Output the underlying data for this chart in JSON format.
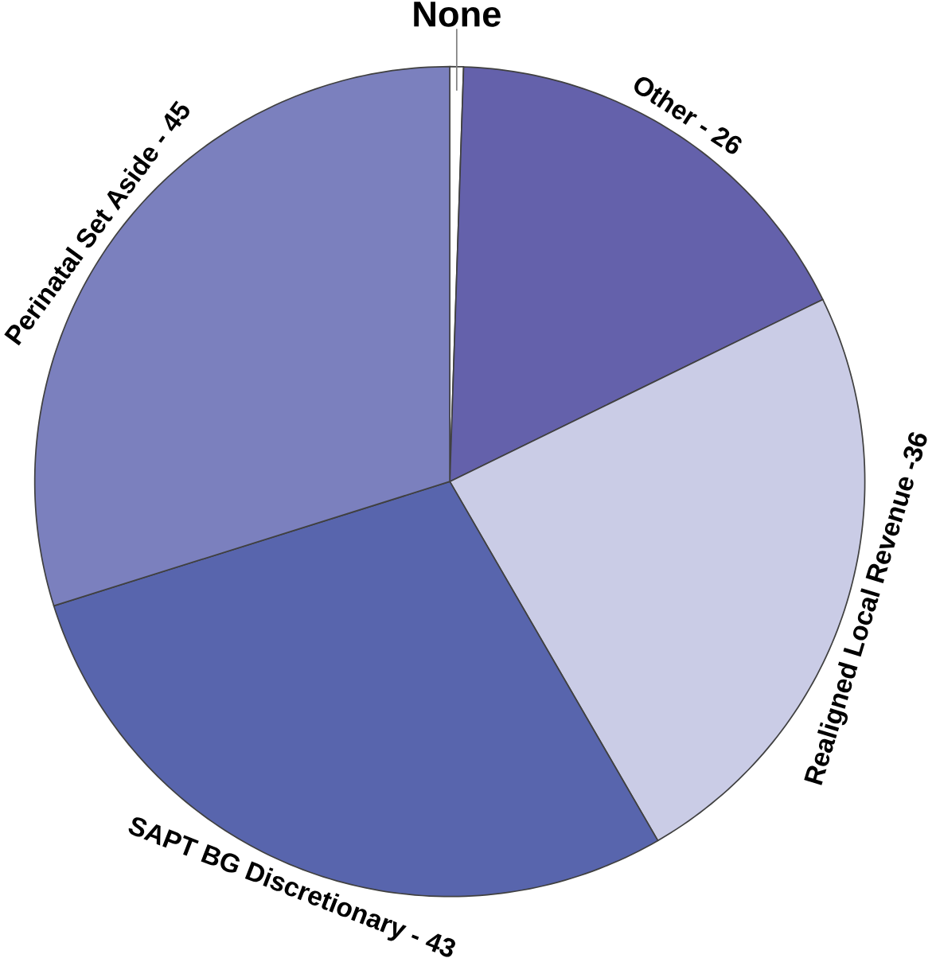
{
  "chart_data": {
    "type": "pie",
    "categories": [
      "None",
      "Other - ",
      "Realigned Local Revenue -",
      "SAPT BG Discretionary - ",
      "Perinatal Set Aside - "
    ],
    "values": [
      0.8,
      26,
      36,
      43,
      45
    ],
    "value_labels": [
      null,
      "26",
      "36",
      "43",
      "45"
    ],
    "colors": [
      "#ffffff",
      "#6461ab",
      "#cacce6",
      "#5865ad",
      "#7b80be"
    ]
  }
}
